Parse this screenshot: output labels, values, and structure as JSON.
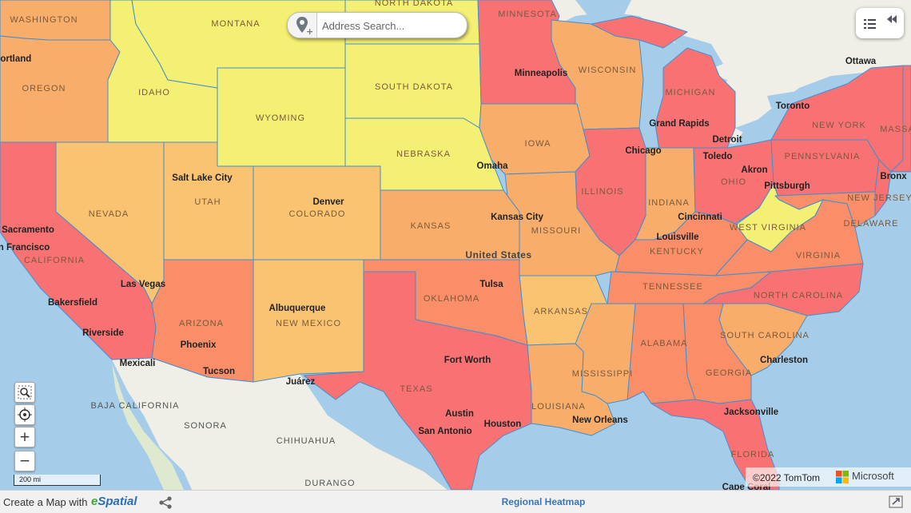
{
  "search": {
    "placeholder": "Address Search..."
  },
  "map": {
    "type": "choropleth heatmap",
    "basemap": "Bing (TomTom / Microsoft)",
    "colors": {
      "water": "#a5cdea",
      "land": "#efefe7",
      "yellow": "#f4f073",
      "light_orange": "#f9c372",
      "orange": "#f9ad6a",
      "dark_orange": "#f98e68",
      "red": "#f87274",
      "state_border": "#3f8fd2"
    },
    "state_labels": [
      "WASHINGTON",
      "MONTANA",
      "NORTH DAKOTA",
      "MINNESOTA",
      "OREGON",
      "IDAHO",
      "SOUTH DAKOTA",
      "WISCONSIN",
      "MICHIGAN",
      "WYOMING",
      "NEW YORK",
      "NEBRASKA",
      "IOWA",
      "PENNSYLVANIA",
      "OHIO",
      "ILLINOIS",
      "INDIANA",
      "NEVADA",
      "UTAH",
      "COLORADO",
      "KANSAS",
      "MISSOURI",
      "WEST VIRGINIA",
      "KENTUCKY",
      "VIRGINIA",
      "CALIFORNIA",
      "TENNESSEE",
      "NORTH CAROLINA",
      "ARIZONA",
      "OKLAHOMA",
      "NEW MEXICO",
      "ARKANSAS",
      "SOUTH CAROLINA",
      "ALABAMA",
      "GEORGIA",
      "MISSISSIPPI",
      "TEXAS",
      "LOUISIANA",
      "FLORIDA",
      "NEW JERSEY",
      "DELAWARE",
      "MASSA"
    ],
    "region_labels": [
      "BAJA CALIFORNIA",
      "SONORA",
      "CHIHUAHUA",
      "DURANGO"
    ],
    "city_labels": [
      "Portland",
      "Minneapolis",
      "Ottawa",
      "Toronto",
      "Grand Rapids",
      "Detroit",
      "Chicago",
      "Toledo",
      "Akron",
      "Salt Lake City",
      "Omaha",
      "Pittsburgh",
      "Bronx",
      "Denver",
      "Kansas City",
      "Cincinnati",
      "Sacramento",
      "San Francisco",
      "Louisville",
      "Las Vegas",
      "Tulsa",
      "Bakersfield",
      "Riverside",
      "Albuquerque",
      "Phoenix",
      "Mexicali",
      "Tucson",
      "Fort Worth",
      "Charleston",
      "Juárez",
      "Austin",
      "Houston",
      "San Antonio",
      "New Orleans",
      "Jacksonville",
      "Cape Coral"
    ],
    "country_label": "United States"
  },
  "controls": {
    "zoom_in_label": "+",
    "zoom_out_label": "−",
    "scale_label": "200 mi"
  },
  "attribution": {
    "copyright": "©2022 TomTom",
    "provider": "Microsoft"
  },
  "footer": {
    "create_text": "Create a Map with",
    "brand_e": "e",
    "brand_rest": "Spatial",
    "title": "Regional Heatmap"
  }
}
